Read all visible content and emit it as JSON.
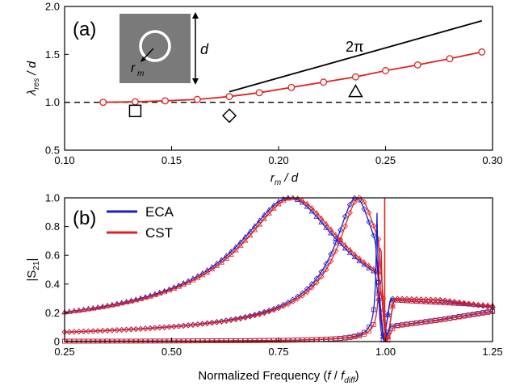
{
  "chart_data": [
    {
      "type": "line",
      "panel_label": "(a)",
      "xlabel": "r_m / d",
      "ylabel": "λ_res / d",
      "xlim": [
        0.1,
        0.3
      ],
      "ylim": [
        0.5,
        2.0
      ],
      "xticks": [
        "0.10",
        "0.15",
        "0.20",
        "0.25",
        "0.30"
      ],
      "yticks": [
        "0.5",
        "1.0",
        "1.5",
        "2.0"
      ],
      "grid": false,
      "series": [
        {
          "color": "#e02020",
          "marker": "open-circle",
          "x": [
            0.118,
            0.133,
            0.147,
            0.162,
            0.177,
            0.191,
            0.206,
            0.221,
            0.236,
            0.25,
            0.265,
            0.28,
            0.295
          ],
          "y": [
            1.0,
            1.005,
            1.015,
            1.03,
            1.06,
            1.1,
            1.155,
            1.21,
            1.265,
            1.33,
            1.39,
            1.455,
            1.525
          ]
        },
        {
          "name": "2π",
          "color": "#000000",
          "x": [
            0.177,
            0.295
          ],
          "y": [
            1.11,
            1.85
          ]
        },
        {
          "color": "#000000",
          "dashed": true,
          "x": [
            0.1,
            0.3
          ],
          "y": [
            1.0,
            1.0
          ]
        }
      ],
      "markers": [
        {
          "shape": "square",
          "x": 0.133,
          "y": 0.91
        },
        {
          "shape": "diamond",
          "x": 0.177,
          "y": 0.86
        },
        {
          "shape": "triangle",
          "x": 0.236,
          "y": 1.11
        }
      ],
      "inset": {
        "r_label": "r",
        "r_sub": "m",
        "d_label": "d"
      }
    },
    {
      "type": "line",
      "panel_label": "(b)",
      "xlabel": "Normalized Frequency (f / f_diff)",
      "ylabel": "|S21|",
      "xlim": [
        0.25,
        1.25
      ],
      "ylim": [
        0.0,
        1.0
      ],
      "xticks": [
        "0.25",
        "0.50",
        "0.75",
        "1.00",
        "1.25"
      ],
      "yticks": [
        "0",
        "0.2",
        "0.4",
        "0.6",
        "0.8",
        "1.0"
      ],
      "grid": false,
      "legend": {
        "position": "top-left",
        "entries": [
          {
            "name": "ECA",
            "color": "#1c1cc8"
          },
          {
            "name": "CST",
            "color": "#e02020"
          }
        ]
      },
      "curves": [
        {
          "marker": "triangle",
          "f0": 0.78,
          "gamma": 0.11,
          "tail": [
            0.29,
            0.27,
            0.25
          ]
        },
        {
          "marker": "diamond",
          "f0": 0.935,
          "gamma": 0.045,
          "tail": [
            0.3,
            0.29,
            0.24
          ]
        },
        {
          "marker": "square",
          "f0": 0.985,
          "gamma": 0.002,
          "tail": [
            0.1,
            0.15,
            0.21
          ]
        }
      ]
    }
  ]
}
